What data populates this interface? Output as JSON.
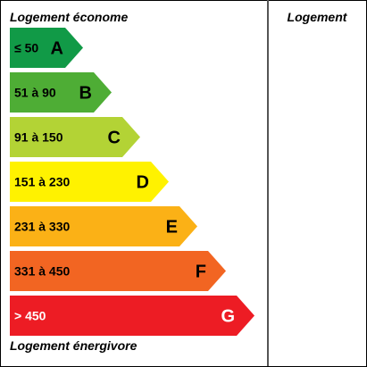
{
  "labels": {
    "top": "Logement économe",
    "bottom": "Logement énergivore",
    "column_header": "Logement"
  },
  "classes": [
    {
      "letter": "A",
      "range": "≤ 50",
      "color": "#119a47",
      "text_color": "#000000"
    },
    {
      "letter": "B",
      "range": "51 à 90",
      "color": "#4ead35",
      "text_color": "#000000"
    },
    {
      "letter": "C",
      "range": "91 à 150",
      "color": "#b3d335",
      "text_color": "#000000"
    },
    {
      "letter": "D",
      "range": "151 à 230",
      "color": "#fff200",
      "text_color": "#000000"
    },
    {
      "letter": "E",
      "range": "231 à 330",
      "color": "#fbb116",
      "text_color": "#000000"
    },
    {
      "letter": "F",
      "range": "331 à 450",
      "color": "#f26522",
      "text_color": "#000000"
    },
    {
      "letter": "G",
      "range": "> 450",
      "color": "#ed1c24",
      "text_color": "#ffffff"
    }
  ]
}
